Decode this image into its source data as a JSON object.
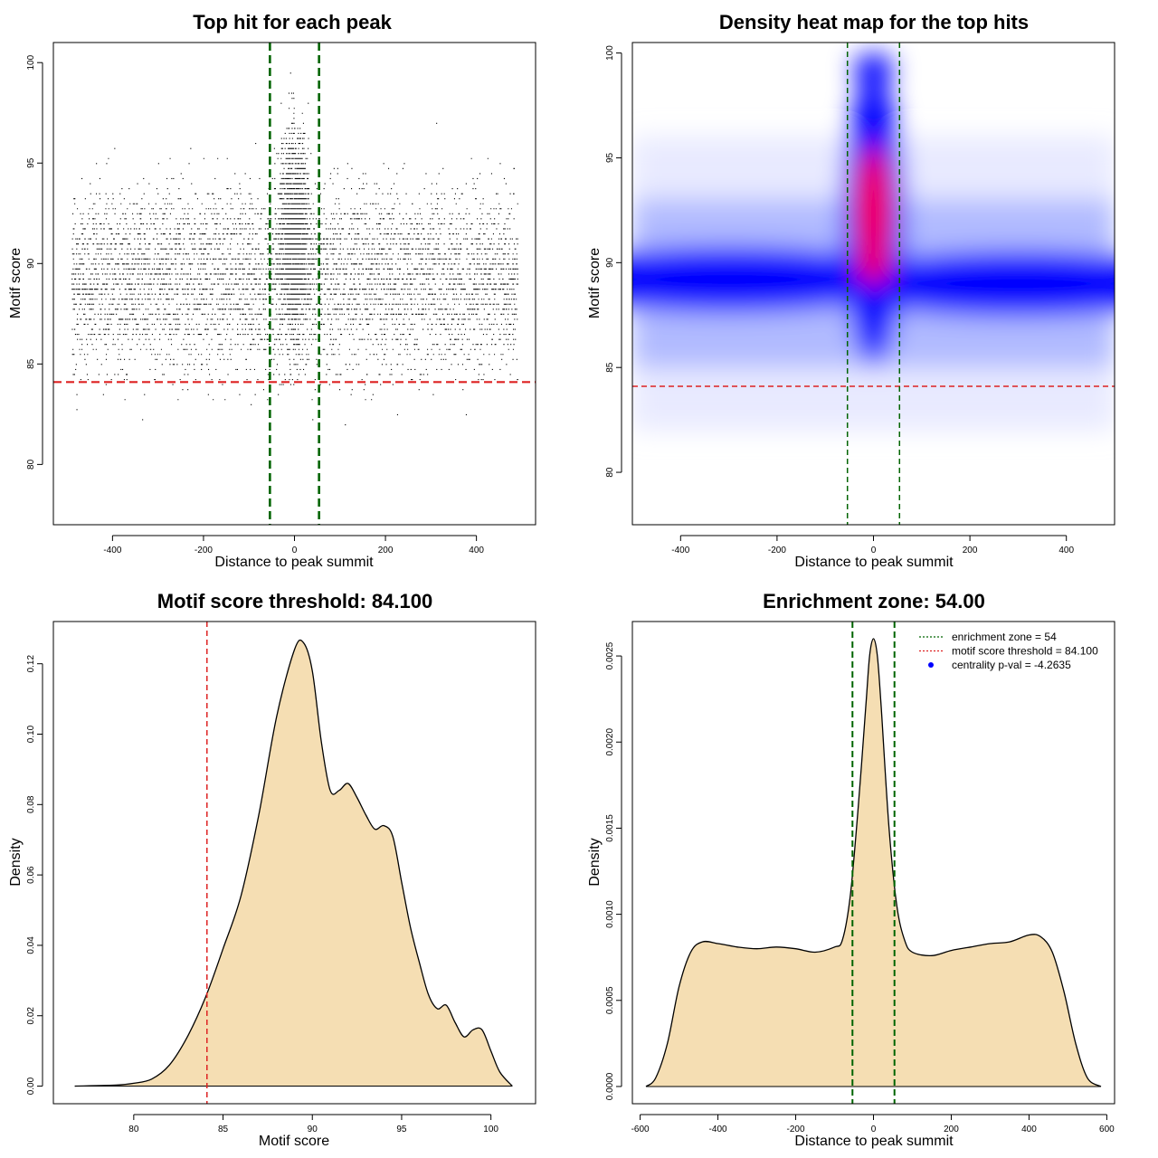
{
  "chart_data": [
    {
      "id": "scatter",
      "type": "scatter",
      "title": "Top hit for each peak",
      "xlabel": "Distance to peak summit",
      "ylabel": "Motif score",
      "xlim": [
        -530,
        530
      ],
      "ylim": [
        77,
        101
      ],
      "x_ticks": [
        -400,
        -200,
        0,
        200,
        400
      ],
      "y_ticks": [
        80,
        85,
        90,
        95,
        100
      ],
      "threshold_y": 84.1,
      "enrichment_zone": [
        -54,
        54
      ],
      "colors": {
        "points": "#000000",
        "threshold": "#dd2222",
        "zone": "#006400"
      },
      "points_description_note": ""
    },
    {
      "id": "heatmap",
      "type": "heatmap",
      "title": "Density heat map for the top hits",
      "xlabel": "Distance to peak summit",
      "ylabel": "Motif score",
      "xlim": [
        -500,
        500
      ],
      "ylim": [
        77.5,
        100.5
      ],
      "x_ticks": [
        -400,
        -200,
        0,
        200,
        400
      ],
      "y_ticks": [
        80,
        85,
        90,
        95,
        100
      ],
      "threshold_y": 84.1,
      "enrichment_zone": [
        -54,
        54
      ],
      "colors": {
        "low": "#ffffff",
        "mid": "#0000ff",
        "high": "#ff0000",
        "threshold": "#dd2222",
        "zone": "#006400"
      }
    },
    {
      "id": "score-density",
      "type": "area",
      "title": "Motif score threshold: 84.100",
      "xlabel": "Motif score",
      "ylabel": "Density",
      "xlim": [
        75.5,
        102.5
      ],
      "ylim": [
        -0.005,
        0.132
      ],
      "x_ticks": [
        80,
        85,
        90,
        95,
        100
      ],
      "y_ticks": [
        0.0,
        0.02,
        0.04,
        0.06,
        0.08,
        0.1,
        0.12
      ],
      "y_tick_labels": [
        "0.00",
        "0.02",
        "0.04",
        "0.06",
        "0.08",
        "0.10",
        "0.12"
      ],
      "threshold_x": 84.1,
      "x": [
        76.7,
        79,
        80,
        81,
        82,
        83,
        84,
        85,
        86,
        87,
        88,
        89,
        89.5,
        90,
        90.5,
        91,
        91.5,
        92,
        92.5,
        93,
        93.5,
        94,
        94.5,
        95,
        95.5,
        96,
        96.5,
        97,
        97.5,
        98,
        98.5,
        99,
        99.5,
        100,
        100.5,
        101.2
      ],
      "y": [
        0.0,
        0.0003,
        0.0008,
        0.002,
        0.006,
        0.014,
        0.025,
        0.039,
        0.054,
        0.077,
        0.105,
        0.124,
        0.126,
        0.118,
        0.098,
        0.084,
        0.084,
        0.086,
        0.082,
        0.077,
        0.073,
        0.074,
        0.071,
        0.058,
        0.045,
        0.035,
        0.026,
        0.022,
        0.023,
        0.018,
        0.014,
        0.016,
        0.016,
        0.01,
        0.004,
        0.0
      ],
      "colors": {
        "fill": "#f5deb3",
        "line": "#000000",
        "threshold": "#dd2222"
      }
    },
    {
      "id": "distance-density",
      "type": "area",
      "title": "Enrichment zone: 54.00",
      "xlabel": "Distance to peak summit",
      "ylabel": "Density",
      "xlim": [
        -620,
        620
      ],
      "ylim": [
        -0.0001,
        0.0027
      ],
      "x_ticks": [
        -600,
        -400,
        -200,
        0,
        200,
        400,
        600
      ],
      "y_ticks": [
        0.0,
        0.0005,
        0.001,
        0.0015,
        0.002,
        0.0025
      ],
      "y_tick_labels": [
        "0.0000",
        "0.0005",
        "0.0010",
        "0.0015",
        "0.0020",
        "0.0025"
      ],
      "enrichment_zone": [
        -54,
        54
      ],
      "x": [
        -585,
        -560,
        -530,
        -500,
        -470,
        -440,
        -400,
        -350,
        -300,
        -250,
        -200,
        -150,
        -100,
        -80,
        -60,
        -40,
        -20,
        -10,
        0,
        10,
        20,
        40,
        60,
        80,
        100,
        150,
        200,
        250,
        300,
        350,
        400,
        430,
        460,
        490,
        520,
        550,
        585
      ],
      "y": [
        0.0,
        5e-05,
        0.00025,
        0.00058,
        0.00078,
        0.00084,
        0.00083,
        0.00081,
        0.0008,
        0.00081,
        0.0008,
        0.00078,
        0.00081,
        0.00085,
        0.0011,
        0.0016,
        0.0022,
        0.0025,
        0.0026,
        0.0025,
        0.0022,
        0.0015,
        0.00105,
        0.00085,
        0.00078,
        0.00076,
        0.00079,
        0.00081,
        0.00083,
        0.00084,
        0.00088,
        0.00087,
        0.00078,
        0.00055,
        0.00025,
        5e-05,
        0.0
      ],
      "legend": [
        {
          "label": "enrichment zone = 54",
          "style": "dotted-line",
          "color": "#006400"
        },
        {
          "label": "motif score threshold = 84.100",
          "style": "dotted-line",
          "color": "#dd2222"
        },
        {
          "label": "centrality p-val = -4.2635",
          "style": "dot",
          "color": "#0000ff"
        }
      ],
      "legend_position": "top-right",
      "colors": {
        "fill": "#f5deb3",
        "line": "#000000",
        "zone": "#006400"
      }
    }
  ]
}
